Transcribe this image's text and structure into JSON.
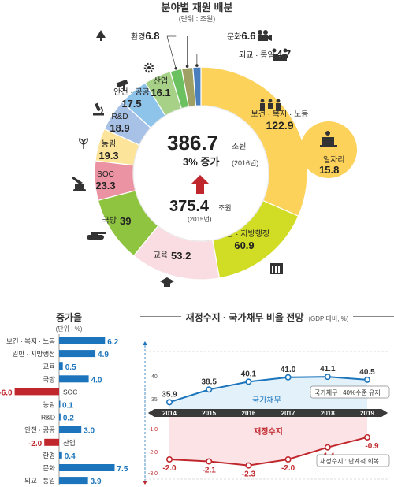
{
  "donut": {
    "title": "분야별 재원 배분",
    "unit": "(단위 : 조원)",
    "center": {
      "total": "386.7",
      "total_unit": "조원",
      "increase": "3% 증가",
      "increase_year": "(2016년)",
      "prev": "375.4",
      "prev_unit": "조원",
      "prev_year": "(2015년)"
    },
    "callout": {
      "label": "일자리",
      "value": "15.8"
    }
  },
  "colors": {
    "accent_blue": "#1c75bc",
    "accent_red": "#c0272d",
    "welfare": "#fcd25a",
    "general_admin": "#d1dc24",
    "education": "#f9dde2",
    "defense": "#8ec440",
    "soc": "#eb93a2",
    "agriculture": "#fde49b",
    "rnd": "#a8c1e6",
    "safety": "#8ec3ea",
    "industry": "#a6d186",
    "environment": "#6bc15f",
    "culture": "#9ea064",
    "diplomacy": "#4a7fbe"
  },
  "growth": {
    "title": "증가율",
    "unit": "(단위 : %)"
  },
  "forecast": {
    "title": "재정수지 · 국가채무 비율 전망",
    "unit": "(GDP 대비, %)",
    "debt_label": "국가채무",
    "balance_label": "재정수지",
    "debt_note": "국가채무 : 40%수준 유지",
    "balance_note": "재정수지 : 단계적 회복"
  },
  "chart_data": [
    {
      "type": "pie",
      "title": "분야별 재원 배분",
      "unit": "조원",
      "slices": [
        {
          "label": "보건 · 복지 · 노동",
          "value": 122.9,
          "icon": "family-icon"
        },
        {
          "label": "일반 · 지방행정",
          "value": 60.9,
          "icon": "government-building-icon"
        },
        {
          "label": "교육",
          "value": 53.2,
          "icon": "graduation-cap-icon"
        },
        {
          "label": "국방",
          "value": 39,
          "icon": "tank-icon"
        },
        {
          "label": "SOC",
          "value": 23.3,
          "icon": "excavator-icon"
        },
        {
          "label": "농림",
          "value": 19.3,
          "icon": "sprout-icon"
        },
        {
          "label": "R&D",
          "value": 18.9,
          "icon": "microscope-icon"
        },
        {
          "label": "안전 · 공공",
          "value": 17.5,
          "icon": "cctv-camera-icon"
        },
        {
          "label": "산업",
          "value": 16.1,
          "icon": "gear-icon"
        },
        {
          "label": "환경",
          "value": 6.8,
          "icon": "tree-icon"
        },
        {
          "label": "문화",
          "value": 6.6,
          "icon": "film-camera-icon"
        },
        {
          "label": "외교 · 통일",
          "value": 4.7,
          "icon": "handshake-icon"
        }
      ]
    },
    {
      "type": "bar",
      "title": "증가율",
      "unit": "%",
      "orientation": "horizontal",
      "categories": [
        "보건 · 복지 · 노동",
        "일반 · 지방행정",
        "교육",
        "국방",
        "SOC",
        "농림",
        "R&D",
        "안전 · 공공",
        "산업",
        "환경",
        "문화",
        "외교 · 통일"
      ],
      "values": [
        6.2,
        4.9,
        0.5,
        4.0,
        -6.0,
        0.1,
        0.2,
        3.0,
        -2.0,
        0.4,
        7.5,
        3.9
      ]
    },
    {
      "type": "line",
      "title": "재정수지 · 국가채무 비율 전망",
      "x": [
        "2014",
        "2015",
        "2016",
        "2017",
        "2018",
        "2019"
      ],
      "series": [
        {
          "name": "국가채무",
          "values": [
            35.9,
            38.5,
            40.1,
            41.0,
            41.1,
            40.5
          ]
        },
        {
          "name": "재정수지",
          "values": [
            -2.0,
            -2.1,
            -2.3,
            -2.0,
            -1.4,
            -0.9
          ]
        }
      ],
      "debt_axis": {
        "ticks": [
          "40",
          "35"
        ]
      },
      "balance_axis": {
        "ticks": [
          "-1.0",
          "-2.0",
          "-3.0"
        ]
      }
    }
  ]
}
